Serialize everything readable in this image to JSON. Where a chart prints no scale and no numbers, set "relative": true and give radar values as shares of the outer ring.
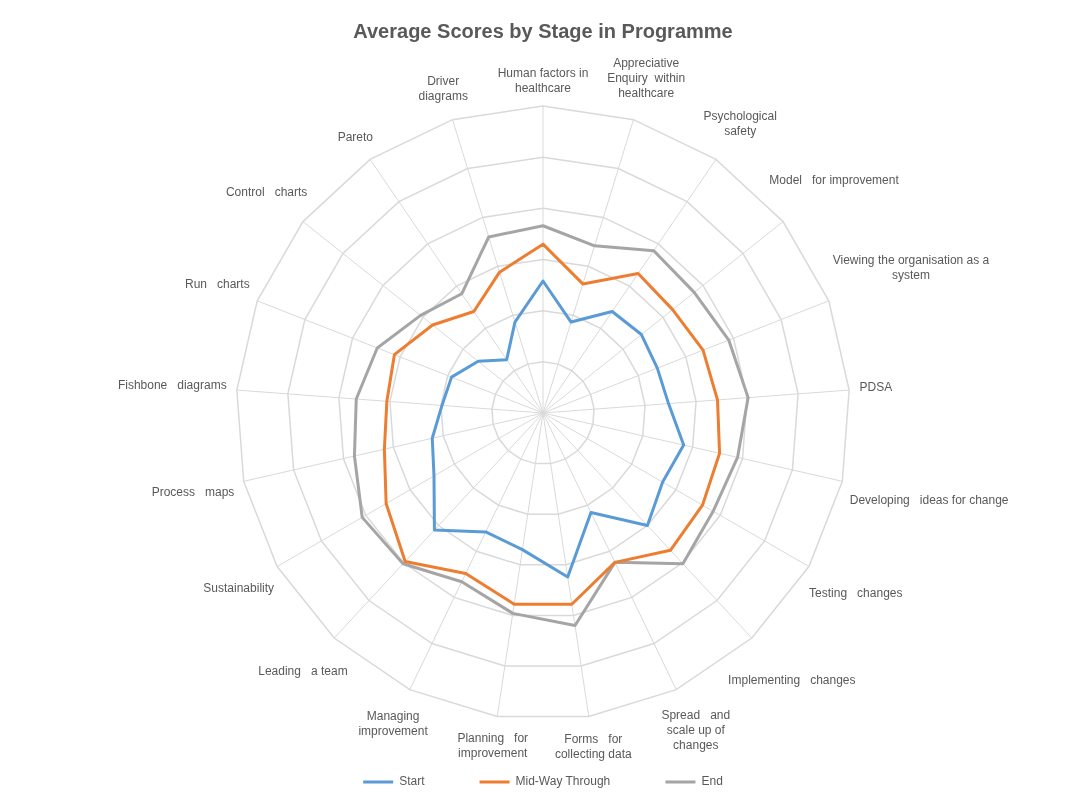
{
  "chart_data": {
    "type": "radar",
    "title": "Average Scores by Stage in Programme",
    "relative": true,
    "legend": "bottom",
    "marker": "none",
    "grid": true,
    "categories": [
      "Human factors in healthcare",
      "Appreciative   Enquiry  within healthcare",
      "Psychological   safety",
      "Model   for improvement",
      "Viewing the organisation as a system",
      "PDSA",
      "Developing   ideas for change",
      "Testing   changes",
      "Implementing   changes",
      "Spread   and scale up of changes",
      "Forms   for collecting data",
      "Planning   for improvement",
      "Managing   improvement",
      "Leading   a team",
      "Sustainability",
      "Process   maps",
      "Fishbone   diagrams",
      "Run   charts",
      "Control   charts",
      "Pareto",
      "Driver   diagrams"
    ],
    "series": [
      {
        "name": "Start",
        "color": "#5b9bd5",
        "values": [
          0.43,
          0.31,
          0.4,
          0.41,
          0.4,
          0.41,
          0.47,
          0.45,
          0.5,
          0.36,
          0.54,
          0.45,
          0.43,
          0.52,
          0.41,
          0.37,
          0.33,
          0.32,
          0.27,
          0.21,
          0.31
        ]
      },
      {
        "name": "Mid-Way Through",
        "color": "#ed7d31",
        "values": [
          0.55,
          0.44,
          0.55,
          0.54,
          0.56,
          0.57,
          0.59,
          0.6,
          0.61,
          0.54,
          0.63,
          0.63,
          0.58,
          0.66,
          0.59,
          0.53,
          0.51,
          0.52,
          0.46,
          0.4,
          0.48
        ]
      },
      {
        "name": "End",
        "color": "#a5a5a5",
        "values": [
          0.61,
          0.57,
          0.64,
          0.63,
          0.65,
          0.67,
          0.65,
          0.64,
          0.67,
          0.54,
          0.7,
          0.66,
          0.61,
          0.67,
          0.68,
          0.63,
          0.61,
          0.58,
          0.51,
          0.47,
          0.6
        ]
      }
    ]
  }
}
